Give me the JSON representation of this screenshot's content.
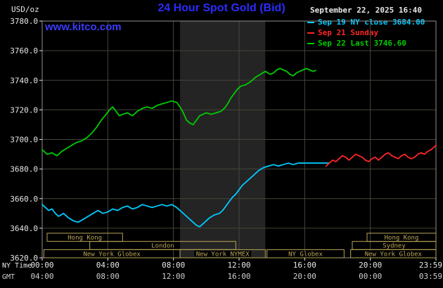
{
  "header": {
    "units_label": "USD/oz",
    "title": "24 Hour Spot Gold (Bid)",
    "datetime": "September 22, 2025 16:40",
    "watermark": "www.kitco.com",
    "legend": [
      {
        "label": "Sep 19 NY close 3684.00",
        "color": "#00ccff"
      },
      {
        "label": "Sep 21 Sunday",
        "color": "#ff2626"
      },
      {
        "label": "Sep 22 Last 3746.60",
        "color": "#00cc00"
      }
    ]
  },
  "footer": {
    "ny_time_label": "NY Time",
    "gmt_label": "GMT"
  },
  "colors": {
    "background": "#000000",
    "grid": "#45453a",
    "plot_border": "#909090",
    "band": "#242424",
    "session_box": "#b8a458",
    "axis_text": "#e8e8e8",
    "gmt_text": "#cfcfcf",
    "title": "#2b2bff",
    "watermark": "#3a3aff"
  },
  "chart_data": {
    "type": "line",
    "title": "24 Hour Spot Gold (Bid)",
    "ylabel": "USD/oz",
    "y_min": 3620,
    "y_max": 3780,
    "y_tick_step": 20,
    "x_hours": [
      0,
      24
    ],
    "x_ticks": [
      {
        "hour": 0,
        "ny": "00:00",
        "gmt": "04:00"
      },
      {
        "hour": 4,
        "ny": "04:00",
        "gmt": "08:00"
      },
      {
        "hour": 8,
        "ny": "08:00",
        "gmt": "12:00"
      },
      {
        "hour": 12,
        "ny": "12:00",
        "gmt": "16:00"
      },
      {
        "hour": 16,
        "ny": "16:00",
        "gmt": "20:00"
      },
      {
        "hour": 20,
        "ny": "20:00",
        "gmt": "00:00"
      },
      {
        "hour": 24,
        "ny": "23:59",
        "gmt": "03:59"
      }
    ],
    "nymex_band_hours": [
      8.4,
      13.6
    ],
    "series": [
      {
        "name": "Sep 19 NY close",
        "close": 3684.0,
        "color": "#00ccff",
        "points": [
          [
            0,
            3656
          ],
          [
            0.2,
            3654
          ],
          [
            0.4,
            3652
          ],
          [
            0.6,
            3653
          ],
          [
            0.8,
            3650
          ],
          [
            1,
            3648
          ],
          [
            1.3,
            3650
          ],
          [
            1.6,
            3647
          ],
          [
            1.9,
            3645
          ],
          [
            2.2,
            3644
          ],
          [
            2.5,
            3646
          ],
          [
            2.8,
            3648
          ],
          [
            3.1,
            3650
          ],
          [
            3.4,
            3652
          ],
          [
            3.7,
            3650
          ],
          [
            4,
            3651
          ],
          [
            4.3,
            3653
          ],
          [
            4.6,
            3652
          ],
          [
            4.9,
            3654
          ],
          [
            5.2,
            3655
          ],
          [
            5.5,
            3653
          ],
          [
            5.8,
            3654
          ],
          [
            6.1,
            3656
          ],
          [
            6.4,
            3655
          ],
          [
            6.7,
            3654
          ],
          [
            7,
            3655
          ],
          [
            7.3,
            3656
          ],
          [
            7.6,
            3655
          ],
          [
            7.9,
            3656
          ],
          [
            8.2,
            3654
          ],
          [
            8.5,
            3651
          ],
          [
            8.8,
            3648
          ],
          [
            9.1,
            3645
          ],
          [
            9.4,
            3642
          ],
          [
            9.6,
            3641
          ],
          [
            9.8,
            3643
          ],
          [
            10,
            3645
          ],
          [
            10.2,
            3647
          ],
          [
            10.5,
            3649
          ],
          [
            10.8,
            3650
          ],
          [
            11,
            3652
          ],
          [
            11.2,
            3655
          ],
          [
            11.4,
            3658
          ],
          [
            11.6,
            3661
          ],
          [
            11.8,
            3663
          ],
          [
            12,
            3666
          ],
          [
            12.2,
            3669
          ],
          [
            12.5,
            3672
          ],
          [
            12.8,
            3675
          ],
          [
            13,
            3677
          ],
          [
            13.2,
            3679
          ],
          [
            13.5,
            3681
          ],
          [
            13.8,
            3682
          ],
          [
            14.1,
            3683
          ],
          [
            14.4,
            3682
          ],
          [
            14.7,
            3683
          ],
          [
            15,
            3684
          ],
          [
            15.3,
            3683
          ],
          [
            15.6,
            3684
          ],
          [
            16,
            3684
          ],
          [
            16.5,
            3684
          ],
          [
            17,
            3684
          ],
          [
            17.5,
            3684
          ]
        ]
      },
      {
        "name": "Sep 21 Sunday",
        "color": "#ff2626",
        "points": [
          [
            17.3,
            3682
          ],
          [
            17.5,
            3684
          ],
          [
            17.7,
            3686
          ],
          [
            17.9,
            3685
          ],
          [
            18.1,
            3687
          ],
          [
            18.3,
            3689
          ],
          [
            18.5,
            3688
          ],
          [
            18.7,
            3686
          ],
          [
            18.9,
            3688
          ],
          [
            19.1,
            3690
          ],
          [
            19.3,
            3689
          ],
          [
            19.5,
            3688
          ],
          [
            19.7,
            3686
          ],
          [
            19.9,
            3685
          ],
          [
            20.1,
            3687
          ],
          [
            20.3,
            3688
          ],
          [
            20.5,
            3686
          ],
          [
            20.7,
            3688
          ],
          [
            20.9,
            3690
          ],
          [
            21.1,
            3691
          ],
          [
            21.3,
            3689
          ],
          [
            21.5,
            3688
          ],
          [
            21.7,
            3687
          ],
          [
            21.9,
            3689
          ],
          [
            22.1,
            3690
          ],
          [
            22.3,
            3688
          ],
          [
            22.5,
            3687
          ],
          [
            22.7,
            3688
          ],
          [
            22.9,
            3690
          ],
          [
            23.1,
            3691
          ],
          [
            23.3,
            3690
          ],
          [
            23.5,
            3692
          ],
          [
            23.7,
            3693
          ],
          [
            23.9,
            3695
          ],
          [
            24,
            3696
          ]
        ]
      },
      {
        "name": "Sep 22 Last",
        "last": 3746.6,
        "color": "#00cc00",
        "points": [
          [
            0,
            3693
          ],
          [
            0.3,
            3690
          ],
          [
            0.6,
            3691
          ],
          [
            0.9,
            3689
          ],
          [
            1.2,
            3692
          ],
          [
            1.5,
            3694
          ],
          [
            1.8,
            3696
          ],
          [
            2.1,
            3698
          ],
          [
            2.4,
            3699
          ],
          [
            2.7,
            3701
          ],
          [
            3,
            3704
          ],
          [
            3.3,
            3708
          ],
          [
            3.6,
            3713
          ],
          [
            3.9,
            3717
          ],
          [
            4.1,
            3720
          ],
          [
            4.3,
            3722
          ],
          [
            4.5,
            3719
          ],
          [
            4.7,
            3716
          ],
          [
            4.9,
            3717
          ],
          [
            5.2,
            3718
          ],
          [
            5.5,
            3716
          ],
          [
            5.8,
            3719
          ],
          [
            6.1,
            3721
          ],
          [
            6.4,
            3722
          ],
          [
            6.7,
            3721
          ],
          [
            7,
            3723
          ],
          [
            7.3,
            3724
          ],
          [
            7.6,
            3725
          ],
          [
            7.9,
            3726
          ],
          [
            8.2,
            3725
          ],
          [
            8.4,
            3722
          ],
          [
            8.6,
            3718
          ],
          [
            8.8,
            3713
          ],
          [
            9,
            3711
          ],
          [
            9.2,
            3710
          ],
          [
            9.4,
            3713
          ],
          [
            9.6,
            3716
          ],
          [
            9.8,
            3717
          ],
          [
            10,
            3718
          ],
          [
            10.3,
            3717
          ],
          [
            10.6,
            3718
          ],
          [
            10.9,
            3719
          ],
          [
            11.1,
            3721
          ],
          [
            11.3,
            3724
          ],
          [
            11.5,
            3728
          ],
          [
            11.7,
            3731
          ],
          [
            11.9,
            3734
          ],
          [
            12.1,
            3736
          ],
          [
            12.4,
            3737
          ],
          [
            12.7,
            3739
          ],
          [
            13,
            3742
          ],
          [
            13.3,
            3744
          ],
          [
            13.6,
            3746
          ],
          [
            13.9,
            3744
          ],
          [
            14.1,
            3745
          ],
          [
            14.3,
            3747
          ],
          [
            14.5,
            3748
          ],
          [
            14.7,
            3747
          ],
          [
            14.9,
            3746
          ],
          [
            15.1,
            3744
          ],
          [
            15.3,
            3743
          ],
          [
            15.5,
            3745
          ],
          [
            15.7,
            3746
          ],
          [
            15.9,
            3747
          ],
          [
            16.1,
            3748
          ],
          [
            16.3,
            3747
          ],
          [
            16.5,
            3746
          ],
          [
            16.67,
            3746.6
          ]
        ]
      }
    ],
    "sessions": [
      {
        "row": 0,
        "label": "Hong Kong",
        "start": 0.3,
        "end": 4.9
      },
      {
        "row": 0,
        "label": "Hong Kong",
        "start": 19.8,
        "end": 24
      },
      {
        "row": 1,
        "label": "London",
        "start": 2.9,
        "end": 11.8
      },
      {
        "row": 1,
        "label": "Sydney",
        "start": 18.9,
        "end": 24
      },
      {
        "row": 2,
        "label": "New York Globex",
        "start": 0.1,
        "end": 8.4
      },
      {
        "row": 2,
        "label": "New York NYMEX",
        "start": 8.4,
        "end": 13.6
      },
      {
        "row": 2,
        "label": "NY Globex",
        "start": 13.7,
        "end": 18.4
      },
      {
        "row": 2,
        "label": "New York Globex",
        "start": 18.8,
        "end": 24
      }
    ]
  }
}
